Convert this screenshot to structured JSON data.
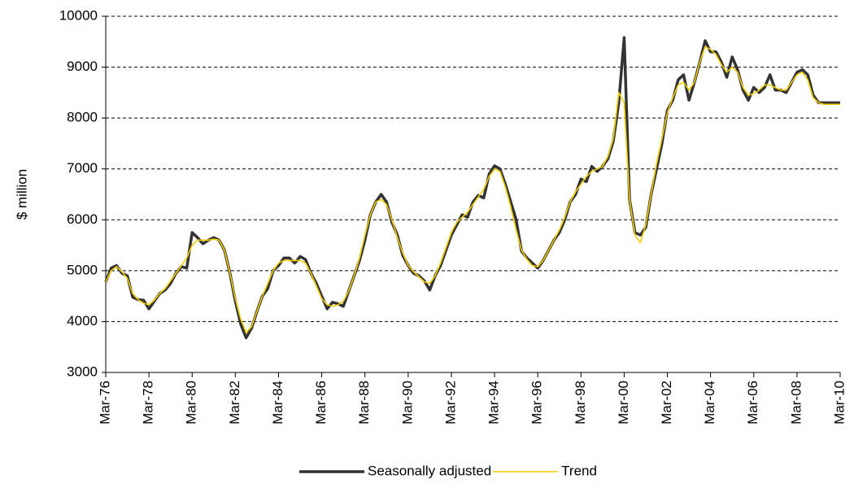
{
  "chart_data": {
    "type": "line",
    "y_label": "$ million",
    "categories": [
      "Mar-76",
      null,
      null,
      null,
      null,
      null,
      null,
      null,
      "Mar-78",
      null,
      null,
      null,
      null,
      null,
      null,
      null,
      "Mar-80",
      null,
      null,
      null,
      null,
      null,
      null,
      null,
      "Mar-82",
      null,
      null,
      null,
      null,
      null,
      null,
      null,
      "Mar-84",
      null,
      null,
      null,
      null,
      null,
      null,
      null,
      "Mar-86",
      null,
      null,
      null,
      null,
      null,
      null,
      null,
      "Mar-88",
      null,
      null,
      null,
      null,
      null,
      null,
      null,
      "Mar-90",
      null,
      null,
      null,
      null,
      null,
      null,
      null,
      "Mar-92",
      null,
      null,
      null,
      null,
      null,
      null,
      null,
      "Mar-94",
      null,
      null,
      null,
      null,
      null,
      null,
      null,
      "Mar-96",
      null,
      null,
      null,
      null,
      null,
      null,
      null,
      "Mar-98",
      null,
      null,
      null,
      null,
      null,
      null,
      null,
      "Mar-00",
      null,
      null,
      null,
      null,
      null,
      null,
      null,
      "Mar-02",
      null,
      null,
      null,
      null,
      null,
      null,
      null,
      "Mar-04",
      null,
      null,
      null,
      null,
      null,
      null,
      null,
      "Mar-06",
      null,
      null,
      null,
      null,
      null,
      null,
      null,
      "Mar-08",
      null,
      null,
      null,
      null,
      null,
      null,
      null,
      "Mar-10"
    ],
    "series": [
      {
        "name": "Seasonally adjusted",
        "color": "#333333",
        "width": 3.5,
        "values": [
          4780,
          5050,
          5100,
          4950,
          4900,
          4480,
          4430,
          4420,
          4250,
          4400,
          4550,
          4620,
          4750,
          4950,
          5080,
          5050,
          5750,
          5650,
          5530,
          5600,
          5650,
          5600,
          5400,
          4950,
          4400,
          3950,
          3680,
          3870,
          4200,
          4500,
          4650,
          5000,
          5100,
          5250,
          5250,
          5150,
          5280,
          5220,
          4950,
          4750,
          4500,
          4250,
          4380,
          4350,
          4300,
          4600,
          4900,
          5200,
          5600,
          6100,
          6350,
          6500,
          6350,
          5950,
          5700,
          5300,
          5100,
          4950,
          4900,
          4800,
          4620,
          4900,
          5100,
          5400,
          5700,
          5900,
          6100,
          6050,
          6350,
          6480,
          6430,
          6900,
          7060,
          7000,
          6700,
          6350,
          6000,
          5380,
          5250,
          5150,
          5050,
          5200,
          5400,
          5600,
          5750,
          6000,
          6350,
          6500,
          6800,
          6750,
          7050,
          6950,
          7050,
          7200,
          7550,
          8300,
          9580,
          6400,
          5750,
          5700,
          5850,
          6500,
          7000,
          7500,
          8150,
          8350,
          8750,
          8850,
          8350,
          8700,
          9100,
          9520,
          9300,
          9300,
          9100,
          8800,
          9200,
          8950,
          8550,
          8350,
          8600,
          8500,
          8600,
          8850,
          8550,
          8550,
          8500,
          8700,
          8900,
          8950,
          8850,
          8450,
          8300,
          8300,
          8300,
          8300,
          8300
        ]
      },
      {
        "name": "Trend",
        "color": "#f2cf00",
        "width": 1.6,
        "values": [
          4780,
          5000,
          5080,
          4980,
          4850,
          4550,
          4430,
          4360,
          4330,
          4420,
          4550,
          4650,
          4800,
          4950,
          5100,
          5250,
          5500,
          5600,
          5600,
          5600,
          5620,
          5600,
          5400,
          4950,
          4450,
          4050,
          3780,
          3900,
          4200,
          4500,
          4750,
          5000,
          5150,
          5200,
          5200,
          5200,
          5200,
          5150,
          4950,
          4700,
          4450,
          4330,
          4300,
          4330,
          4400,
          4600,
          4900,
          5250,
          5700,
          6100,
          6350,
          6400,
          6300,
          6000,
          5650,
          5350,
          5100,
          4980,
          4880,
          4780,
          4750,
          4900,
          5150,
          5450,
          5750,
          5950,
          6050,
          6150,
          6300,
          6450,
          6600,
          6850,
          7000,
          6950,
          6650,
          6250,
          5800,
          5400,
          5220,
          5100,
          5080,
          5200,
          5400,
          5600,
          5800,
          6050,
          6350,
          6550,
          6700,
          6850,
          6950,
          7000,
          7050,
          7250,
          7600,
          8500,
          8300,
          6400,
          5700,
          5550,
          5900,
          6500,
          7100,
          7600,
          8100,
          8400,
          8650,
          8700,
          8550,
          8700,
          9100,
          9400,
          9350,
          9250,
          9050,
          8900,
          9000,
          8900,
          8600,
          8450,
          8480,
          8550,
          8650,
          8650,
          8600,
          8550,
          8550,
          8700,
          8850,
          8900,
          8750,
          8400,
          8300,
          8270,
          8270,
          8270,
          8270
        ]
      }
    ],
    "ylim": [
      3000,
      10000
    ],
    "yticks": [
      3000,
      4000,
      5000,
      6000,
      7000,
      8000,
      9000,
      10000
    ],
    "grid": true,
    "legend": "bottom"
  }
}
